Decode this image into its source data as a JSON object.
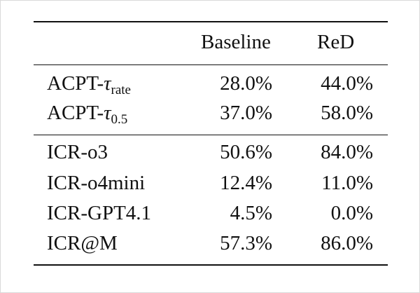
{
  "table": {
    "columns": [
      "",
      "Baseline",
      "ReD"
    ],
    "groups": [
      {
        "rows": [
          {
            "label_prefix": "ACPT-",
            "label_symbol": "τ",
            "label_sub": "rate",
            "baseline": "28.0%",
            "red": "44.0%"
          },
          {
            "label_prefix": "ACPT-",
            "label_symbol": "τ",
            "label_sub": "0.5",
            "baseline": "37.0%",
            "red": "58.0%"
          }
        ]
      },
      {
        "rows": [
          {
            "label": "ICR-o3",
            "baseline": "50.6%",
            "red": "84.0%"
          },
          {
            "label": "ICR-o4mini",
            "baseline": "12.4%",
            "red": "11.0%"
          },
          {
            "label": "ICR-GPT4.1",
            "baseline": "4.5%",
            "red": "0.0%"
          },
          {
            "label": "ICR@M",
            "baseline": "57.3%",
            "red": "86.0%"
          }
        ]
      }
    ]
  }
}
